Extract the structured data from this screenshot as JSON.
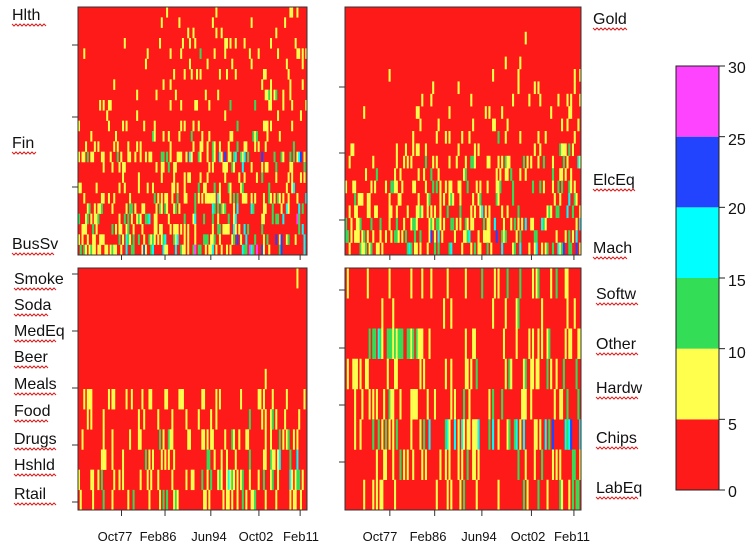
{
  "chart_data": {
    "type": "heatmap",
    "value_range": [
      0,
      30
    ],
    "colorbar": {
      "ticks": [
        "0",
        "5",
        "10",
        "15",
        "20",
        "25",
        "30"
      ],
      "bands": [
        {
          "from": 0,
          "to": 5,
          "color": "#ff1a1a"
        },
        {
          "from": 5,
          "to": 10,
          "color": "#ffff4d"
        },
        {
          "from": 10,
          "to": 15,
          "color": "#33dd55"
        },
        {
          "from": 15,
          "to": 20,
          "color": "#00ffff"
        },
        {
          "from": 20,
          "to": 25,
          "color": "#2244ff"
        },
        {
          "from": 25,
          "to": 30,
          "color": "#ff44ff"
        }
      ]
    },
    "x_tick_labels": [
      "Oct77",
      "Feb86",
      "Jun94",
      "Oct02",
      "Feb11"
    ],
    "panels": [
      {
        "id": "top-left",
        "row_labels": [
          "Hlth",
          "Fin",
          "BusSv"
        ],
        "label_side": "left",
        "seed": 11,
        "rows": [
          {
            "base": 0.2,
            "var": 0.9
          },
          {
            "base": 0.3,
            "var": 1.0
          },
          {
            "base": 0.25,
            "var": 0.9
          },
          {
            "base": 0.3,
            "var": 1.1
          },
          {
            "base": 0.35,
            "var": 1.2
          },
          {
            "base": 0.3,
            "var": 1.3
          },
          {
            "base": 0.3,
            "var": 1.2
          },
          {
            "base": 0.35,
            "var": 1.2
          },
          {
            "base": 0.4,
            "var": 1.3
          },
          {
            "base": 0.3,
            "var": 1.3
          },
          {
            "base": 0.3,
            "var": 1.1
          },
          {
            "base": 0.4,
            "var": 1.5
          },
          {
            "base": 0.5,
            "var": 1.6
          },
          {
            "base": 0.5,
            "var": 1.7
          },
          {
            "base": 1.2,
            "var": 2.4
          },
          {
            "base": 0.6,
            "var": 1.8
          },
          {
            "base": 0.5,
            "var": 1.6
          },
          {
            "base": 0.7,
            "var": 2.0
          },
          {
            "base": 0.8,
            "var": 2.0
          },
          {
            "base": 0.9,
            "var": 2.4
          },
          {
            "base": 1.0,
            "var": 2.6
          },
          {
            "base": 0.8,
            "var": 2.2
          },
          {
            "base": 1.1,
            "var": 2.8
          },
          {
            "base": 1.4,
            "var": 3.0
          }
        ]
      },
      {
        "id": "top-right",
        "row_labels": [
          "Gold",
          "ElcEq",
          "Mach"
        ],
        "label_side": "right",
        "seed": 29,
        "rows": [
          {
            "base": 0.05,
            "var": 0.4
          },
          {
            "base": 0.1,
            "var": 0.6
          },
          {
            "base": 0.15,
            "var": 0.8
          },
          {
            "base": 0.1,
            "var": 0.7
          },
          {
            "base": 0.2,
            "var": 0.9
          },
          {
            "base": 0.2,
            "var": 1.0
          },
          {
            "base": 0.25,
            "var": 1.0
          },
          {
            "base": 0.3,
            "var": 1.1
          },
          {
            "base": 0.35,
            "var": 1.2
          },
          {
            "base": 0.3,
            "var": 1.2
          },
          {
            "base": 0.4,
            "var": 1.3
          },
          {
            "base": 0.5,
            "var": 1.5
          },
          {
            "base": 0.7,
            "var": 1.9
          },
          {
            "base": 0.6,
            "var": 1.8
          },
          {
            "base": 0.8,
            "var": 2.0
          },
          {
            "base": 0.7,
            "var": 2.0
          },
          {
            "base": 0.9,
            "var": 2.2
          },
          {
            "base": 1.0,
            "var": 2.4
          },
          {
            "base": 1.1,
            "var": 2.5
          },
          {
            "base": 1.3,
            "var": 2.9
          }
        ]
      },
      {
        "id": "bottom-left",
        "row_labels": [
          "Smoke",
          "Soda",
          "MedEq",
          "Beer",
          "Meals",
          "Food",
          "Drugs",
          "Hshld",
          "Rtail"
        ],
        "label_side": "left",
        "seed": 53,
        "rows": [
          {
            "base": 0.2,
            "var": 0.6
          },
          {
            "base": 0.15,
            "var": 0.5
          },
          {
            "base": 0.1,
            "var": 0.5
          },
          {
            "base": 0.25,
            "var": 0.8
          },
          {
            "base": 0.2,
            "var": 0.7
          },
          {
            "base": 0.3,
            "var": 0.9
          },
          {
            "base": 0.8,
            "var": 1.3
          },
          {
            "base": 0.7,
            "var": 1.4
          },
          {
            "base": 0.7,
            "var": 1.5
          },
          {
            "base": 0.8,
            "var": 1.6
          },
          {
            "base": 1.0,
            "var": 1.8
          },
          {
            "base": 0.7,
            "var": 1.8
          }
        ]
      },
      {
        "id": "bottom-right",
        "row_labels": [
          "Softw",
          "Other",
          "Hardw",
          "Chips",
          "LabEq"
        ],
        "label_side": "right",
        "seed": 71,
        "rows": [
          {
            "base": 0.6,
            "var": 1.4
          },
          {
            "base": 0.4,
            "var": 1.2
          },
          {
            "base": 1.6,
            "var": 1.6,
            "window": [
              0.1,
              0.33
            ]
          },
          {
            "base": 0.8,
            "var": 1.6
          },
          {
            "base": 0.9,
            "var": 1.8
          },
          {
            "base": 1.3,
            "var": 2.5
          },
          {
            "base": 0.9,
            "var": 1.8
          },
          {
            "base": 0.6,
            "var": 1.5
          }
        ]
      }
    ]
  }
}
